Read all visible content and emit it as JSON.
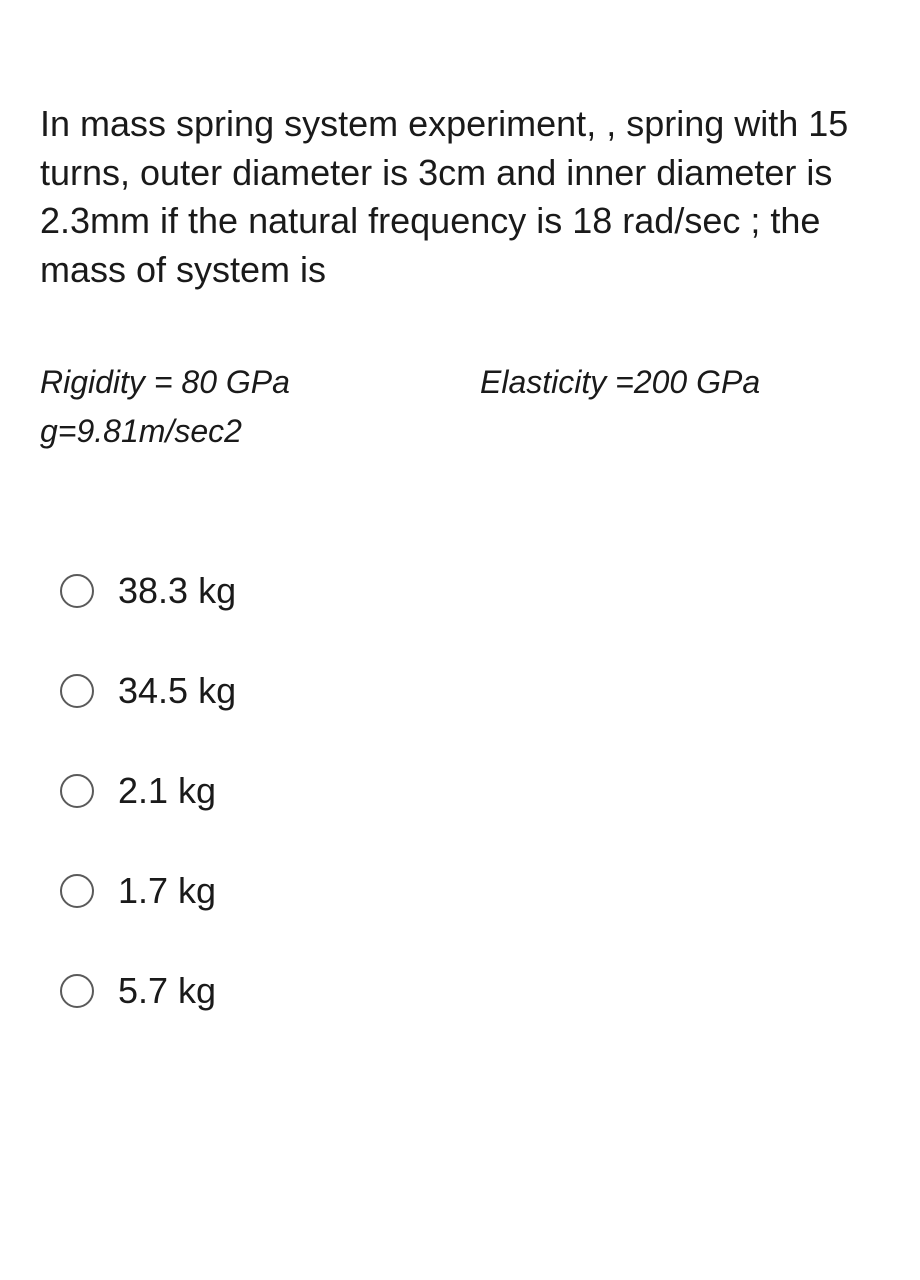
{
  "question": {
    "text": "In mass spring system experiment, , spring with 15 turns, outer diameter  is 3cm and inner diameter is 2.3mm if the natural frequency is 18 rad/sec ; the mass of system is",
    "text_color": "#1a1a1a",
    "fontsize": 36
  },
  "parameters": {
    "rigidity": "Rigidity = 80 GPa",
    "elasticity": "Elasticity =200 GPa",
    "gravity": "g=9.81m/sec2",
    "fontsize": 32,
    "font_style": "italic",
    "text_color": "#1a1a1a"
  },
  "options": [
    {
      "label": "38.3 kg"
    },
    {
      "label": "34.5 kg"
    },
    {
      "label": "2.1 kg"
    },
    {
      "label": "1.7 kg"
    },
    {
      "label": "5.7 kg"
    }
  ],
  "styling": {
    "background_color": "#ffffff",
    "radio_border_color": "#5a5a5a",
    "radio_size": 34,
    "option_fontsize": 36,
    "option_gap": 58
  }
}
